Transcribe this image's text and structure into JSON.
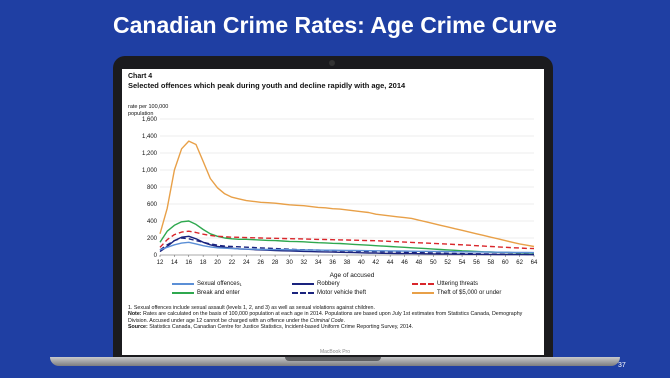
{
  "slide": {
    "title": "Canadian Crime Rates: Age Crime Curve",
    "page_number": "37",
    "laptop_label": "MacBook Pro"
  },
  "chart_data": {
    "type": "line",
    "chart_label": "Chart 4",
    "title": "Selected offences which peak during youth and decline rapidly with age, 2014",
    "ylabel": "rate per 100,000 population",
    "xlabel": "Age of accused",
    "ylim": [
      0,
      1600
    ],
    "yticks": [
      0,
      200,
      400,
      600,
      800,
      1000,
      1200,
      1400,
      1600
    ],
    "ytick_labels": [
      "0",
      "200",
      "400",
      "600",
      "800",
      "1,000",
      "1,200",
      "1,400",
      "1,600"
    ],
    "xlim": [
      12,
      64
    ],
    "xticks": [
      12,
      14,
      16,
      18,
      20,
      22,
      24,
      26,
      28,
      30,
      32,
      34,
      36,
      38,
      40,
      42,
      44,
      46,
      48,
      50,
      52,
      54,
      56,
      58,
      60,
      62,
      64
    ],
    "grid": true,
    "legend_position": "bottom",
    "x": [
      12,
      13,
      14,
      15,
      16,
      17,
      18,
      19,
      20,
      21,
      22,
      23,
      24,
      25,
      26,
      27,
      28,
      29,
      30,
      31,
      32,
      33,
      34,
      35,
      36,
      37,
      38,
      39,
      40,
      41,
      42,
      43,
      44,
      45,
      46,
      47,
      48,
      49,
      50,
      51,
      52,
      53,
      54,
      55,
      56,
      57,
      58,
      59,
      60,
      61,
      62,
      63,
      64
    ],
    "series": [
      {
        "name": "Sexual offences",
        "name_suffix": "1",
        "color": "#5b8fd6",
        "dash": "solid",
        "values": [
          60,
          90,
          120,
          140,
          150,
          130,
          110,
          95,
          85,
          80,
          75,
          72,
          70,
          68,
          66,
          65,
          64,
          63,
          62,
          61,
          60,
          59,
          58,
          57,
          56,
          55,
          54,
          53,
          52,
          51,
          50,
          49,
          48,
          47,
          46,
          45,
          44,
          43,
          42,
          41,
          40,
          39,
          38,
          37,
          36,
          35,
          34,
          33,
          32,
          31,
          30,
          29,
          28
        ]
      },
      {
        "name": "Break and enter",
        "color": "#2fa84f",
        "dash": "solid",
        "values": [
          150,
          280,
          350,
          390,
          400,
          360,
          300,
          250,
          220,
          200,
          190,
          185,
          185,
          180,
          175,
          172,
          170,
          165,
          160,
          158,
          155,
          150,
          145,
          142,
          138,
          135,
          130,
          125,
          120,
          115,
          110,
          105,
          100,
          95,
          90,
          85,
          80,
          75,
          70,
          65,
          60,
          55,
          50,
          46,
          42,
          38,
          35,
          32,
          30,
          28,
          26,
          24,
          22
        ]
      },
      {
        "name": "Robbery",
        "color": "#1a237e",
        "dash": "solid",
        "values": [
          40,
          100,
          170,
          210,
          220,
          190,
          150,
          120,
          100,
          90,
          80,
          72,
          68,
          64,
          60,
          56,
          52,
          50,
          48,
          45,
          42,
          40,
          38,
          36,
          34,
          32,
          30,
          28,
          26,
          24,
          22,
          20,
          19,
          18,
          17,
          16,
          15,
          14,
          13,
          12,
          11,
          10,
          9,
          8,
          8,
          7,
          7,
          6,
          6,
          5,
          5,
          5,
          4
        ]
      },
      {
        "name": "Motor vehicle theft",
        "color": "#1a237e",
        "dash": "dash",
        "values": [
          60,
          120,
          170,
          200,
          190,
          170,
          150,
          130,
          115,
          105,
          100,
          96,
          92,
          88,
          84,
          80,
          76,
          72,
          68,
          64,
          62,
          60,
          58,
          55,
          52,
          50,
          48,
          46,
          44,
          42,
          40,
          38,
          36,
          34,
          32,
          30,
          28,
          26,
          24,
          22,
          20,
          18,
          16,
          15,
          14,
          13,
          12,
          11,
          10,
          9,
          8,
          7,
          6
        ]
      },
      {
        "name": "Uttering threats",
        "color": "#d9262b",
        "dash": "dash",
        "values": [
          90,
          180,
          240,
          270,
          280,
          265,
          245,
          230,
          220,
          215,
          210,
          208,
          205,
          202,
          200,
          198,
          196,
          194,
          192,
          190,
          188,
          186,
          184,
          182,
          180,
          178,
          176,
          174,
          172,
          170,
          168,
          164,
          160,
          156,
          152,
          148,
          144,
          140,
          136,
          132,
          128,
          124,
          120,
          115,
          110,
          105,
          100,
          95,
          90,
          86,
          82,
          78,
          75
        ]
      },
      {
        "name": "Theft of $5,000 or under",
        "color": "#e8a048",
        "dash": "solid",
        "values": [
          250,
          550,
          1000,
          1250,
          1340,
          1300,
          1100,
          900,
          790,
          720,
          680,
          660,
          640,
          630,
          620,
          615,
          610,
          600,
          590,
          585,
          580,
          570,
          560,
          555,
          545,
          540,
          530,
          520,
          510,
          500,
          480,
          470,
          460,
          450,
          440,
          430,
          410,
          390,
          370,
          350,
          330,
          310,
          290,
          270,
          250,
          230,
          210,
          190,
          170,
          150,
          130,
          115,
          100
        ]
      }
    ]
  },
  "notes": {
    "note1": "1. Sexual offences include sexual assault (levels 1, 2, and 3) as well as sexual violations against children.",
    "note_label": "Note:",
    "note_text": "Rates are calculated on the basis of 100,000 population at each age in 2014. Populations are based upon July 1st estimates from Statistics Canada, Demography Division. Accused under age 12 cannot be charged with an offence under the",
    "note_italic": "Criminal Code",
    "note_end": ".",
    "source_label": "Source:",
    "source_text": "Statistics Canada, Canadian Centre for Justice Statistics, Incident-based Uniform Crime Reporting Survey, 2014."
  }
}
